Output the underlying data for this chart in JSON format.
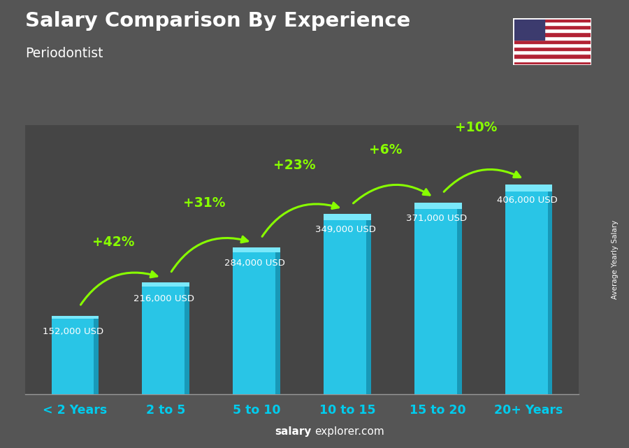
{
  "title": "Salary Comparison By Experience",
  "subtitle": "Periodontist",
  "categories": [
    "< 2 Years",
    "2 to 5",
    "5 to 10",
    "10 to 15",
    "15 to 20",
    "20+ Years"
  ],
  "values": [
    152000,
    216000,
    284000,
    349000,
    371000,
    406000
  ],
  "value_labels": [
    "152,000 USD",
    "216,000 USD",
    "284,000 USD",
    "349,000 USD",
    "371,000 USD",
    "406,000 USD"
  ],
  "pct_changes": [
    "+42%",
    "+31%",
    "+23%",
    "+6%",
    "+10%"
  ],
  "bar_color_main": "#29C5E6",
  "bar_color_light": "#55D8F5",
  "bar_color_dark": "#1899B8",
  "bar_color_top": "#7AE8FA",
  "bg_color": "#555555",
  "text_color_white": "#ffffff",
  "text_color_green": "#88FF00",
  "xtick_color": "#00CCEE",
  "ylabel": "Average Yearly Salary",
  "ylim": [
    0,
    520000
  ],
  "bar_width": 0.52,
  "arrow_rad": -0.4
}
